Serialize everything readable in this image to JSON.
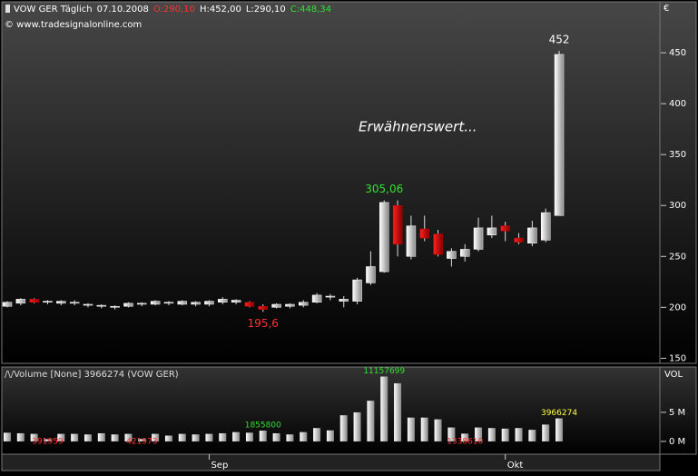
{
  "chart_data": {
    "type": "candlestick",
    "header": [
      {
        "text": "VOW GER Täglich",
        "color": "#ffffff"
      },
      {
        "text": "07.10.2008",
        "color": "#ffffff"
      },
      {
        "text": "O:290,10",
        "color": "#ff3030"
      },
      {
        "text": "H:452,00",
        "color": "#ffffff"
      },
      {
        "text": "L:290,10",
        "color": "#ffffff"
      },
      {
        "text": "C:448,34",
        "color": "#30e030"
      }
    ],
    "subtitle": "© www.tradesignalonline.com",
    "annotation": "Erwähnenswert...",
    "currency": "€",
    "categories": [
      null,
      null,
      null,
      null,
      null,
      null,
      null,
      null,
      null,
      null,
      null,
      null,
      null,
      null,
      null,
      "Sep",
      null,
      null,
      null,
      null,
      null,
      null,
      null,
      null,
      null,
      null,
      null,
      null,
      null,
      null,
      null,
      null,
      null,
      null,
      null,
      null,
      null,
      "Okt",
      null,
      null,
      null,
      null
    ],
    "open": [
      201,
      204,
      208,
      205,
      204,
      204,
      202,
      201,
      200,
      201,
      203,
      203,
      204,
      203,
      203,
      203,
      205,
      205,
      205,
      201,
      200,
      201,
      202,
      205,
      210,
      206,
      206,
      224,
      235,
      300,
      250,
      277,
      272,
      248,
      250,
      257,
      271,
      280,
      268,
      263,
      266,
      290.1
    ],
    "high": [
      206,
      209,
      209,
      207,
      207,
      207,
      204,
      203,
      202,
      205,
      205,
      207,
      206,
      207,
      206,
      207,
      210,
      208,
      206,
      203,
      204,
      204,
      207,
      214,
      213,
      211,
      229,
      255,
      305.06,
      305,
      290,
      290,
      276,
      258,
      262,
      288,
      290,
      284,
      273,
      285,
      297,
      452
    ],
    "low": [
      200,
      202,
      204,
      203,
      202,
      202,
      200,
      199,
      198,
      200,
      201,
      202,
      202,
      202,
      201,
      201,
      203,
      203,
      200,
      195.6,
      199,
      199,
      200,
      204,
      207,
      200,
      203,
      222,
      234,
      250,
      247,
      265,
      250,
      240,
      245,
      255,
      268,
      265,
      262,
      260,
      264,
      290.1
    ],
    "close": [
      205,
      208,
      205,
      206,
      206,
      205,
      203,
      202,
      201,
      204,
      204,
      206,
      205,
      206,
      205,
      206,
      208,
      207,
      201,
      198,
      203,
      203,
      205,
      212,
      211,
      208,
      227,
      240,
      303,
      262,
      280,
      268,
      252,
      255,
      257,
      278,
      278,
      275,
      264,
      278,
      293,
      448.34
    ],
    "up_color": "#ffffff",
    "down_color": "#cc0000",
    "price_labels": [
      {
        "index": 41,
        "field": "high",
        "label": "452",
        "color": "#ffffff"
      },
      {
        "index": 28,
        "field": "high",
        "label": "305,06",
        "color": "#30e030"
      },
      {
        "index": 19,
        "field": "low",
        "label": "195,6",
        "color": "#ff3030"
      }
    ],
    "ylim": [
      145,
      500
    ],
    "yticks": [
      150,
      200,
      250,
      300,
      350,
      400,
      450
    ],
    "volume": {
      "title": "/\\/Volume [None] 3966274 (VOW GER)",
      "axis_label": "VOL",
      "values": [
        1500000,
        1400000,
        1300000,
        391959,
        1300000,
        1300000,
        1200000,
        1400000,
        1200000,
        1300000,
        421973,
        1300000,
        1000000,
        1300000,
        1200000,
        1300000,
        1400000,
        1600000,
        1500000,
        1855800,
        1400000,
        1200000,
        1600000,
        2300000,
        1900000,
        4500000,
        5000000,
        7000000,
        11157699,
        10000000,
        4100000,
        4100000,
        3800000,
        2400000,
        1338610,
        2400000,
        2300000,
        2200000,
        2300000,
        2000000,
        2900000,
        3966274
      ],
      "labeled": [
        {
          "index": 3,
          "color": "#ff3030"
        },
        {
          "index": 10,
          "color": "#ff3030"
        },
        {
          "index": 19,
          "color": "#30e030"
        },
        {
          "index": 28,
          "color": "#30e030"
        },
        {
          "index": 34,
          "color": "#ff3030"
        },
        {
          "index": 41,
          "color": "#ffff40"
        }
      ],
      "ylim": [
        -2200000,
        12800000
      ],
      "yticks": [
        {
          "value": 5000000,
          "label": "5 M"
        },
        {
          "value": 0,
          "label": "0 M"
        }
      ]
    }
  }
}
